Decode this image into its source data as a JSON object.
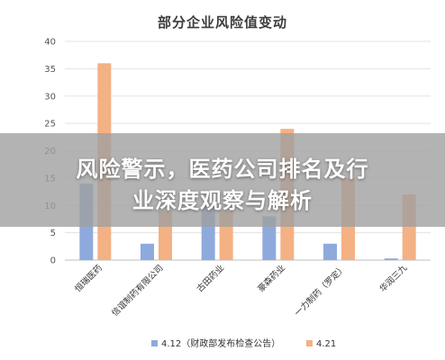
{
  "chart_data": {
    "type": "bar",
    "title": "部分企业风险值变动",
    "categories": [
      "恒瑞医药",
      "信谊制药有限公司",
      "古田药业",
      "豪森药业",
      "一力制药（罗定）",
      "华润三九"
    ],
    "series": [
      {
        "name": "4.12（财政部发布检查公告）",
        "color": "#8eaadc",
        "values": [
          14,
          3,
          10,
          8,
          3,
          0.3
        ]
      },
      {
        "name": "4.21",
        "color": "#f4b183",
        "values": [
          36,
          9,
          9,
          24,
          15,
          12
        ]
      }
    ],
    "yticks": [
      0,
      5,
      10,
      15,
      20,
      25,
      30,
      35,
      40
    ],
    "ylim": [
      0,
      40
    ],
    "grid": true,
    "legend_position": "bottom"
  },
  "banner": {
    "line1": "风险警示，医药公司排名及行",
    "line2": "业深度观察与解析"
  }
}
